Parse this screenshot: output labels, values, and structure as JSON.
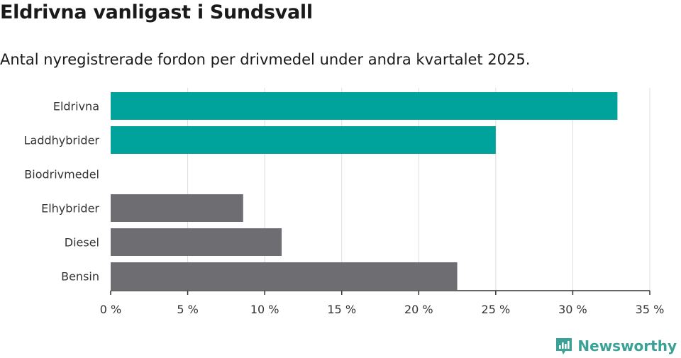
{
  "title": "Eldrivna vanligast i Sundsvall",
  "subtitle": "Antal nyregistrerade fordon per drivmedel under andra kvartalet 2025.",
  "brand": "Newsworthy",
  "colors": {
    "highlight": "#00a39b",
    "neutral": "#6e6d72",
    "grid": "#dddddd",
    "axis": "#333333",
    "brand": "#3aa196"
  },
  "chart_data": {
    "type": "bar",
    "orientation": "horizontal",
    "categories": [
      "Eldrivna",
      "Laddhybrider",
      "Biodrivmedel",
      "Elhybrider",
      "Diesel",
      "Bensin"
    ],
    "values": [
      32.9,
      25.0,
      0,
      8.6,
      11.1,
      22.5
    ],
    "bar_colors": [
      "#00a39b",
      "#00a39b",
      "#6e6d72",
      "#6e6d72",
      "#6e6d72",
      "#6e6d72"
    ],
    "xlim": [
      0,
      35
    ],
    "xticks": [
      0,
      5,
      10,
      15,
      20,
      25,
      30,
      35
    ],
    "xtick_labels": [
      "0 %",
      "5 %",
      "10 %",
      "15 %",
      "20 %",
      "25 %",
      "30 %",
      "35 %"
    ],
    "grid": true
  }
}
